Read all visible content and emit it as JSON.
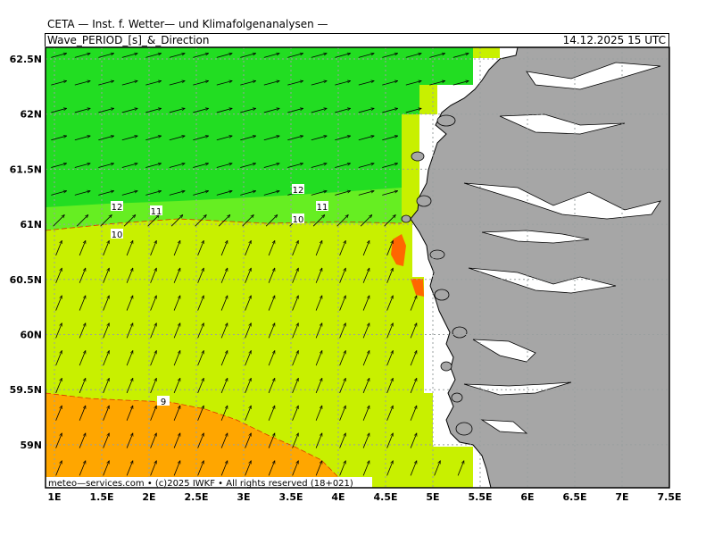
{
  "header": {
    "title": "CETA — Inst. f. Wetter— und Klimafolgenanalysen —",
    "parameter": "Wave_PERIOD_[s]_&_Direction",
    "valid_time": "14.12.2025  15 UTC"
  },
  "map": {
    "lon_ticks": [
      "1E",
      "1.5E",
      "2E",
      "2.5E",
      "3E",
      "3.5E",
      "4E",
      "4.5E",
      "5E",
      "5.5E",
      "6E",
      "6.5E",
      "7E",
      "7.5E"
    ],
    "lat_ticks": [
      "62.5N",
      "62N",
      "61.5N",
      "61N",
      "60.5N",
      "60N",
      "59.5N",
      "59N"
    ],
    "contour_labels": [
      "12",
      "11",
      "10",
      "12",
      "11",
      "10",
      "9"
    ],
    "credit": "meteo—services.com • (c)2025 IWKF • All rights reserved (18+021)",
    "colors": {
      "period_12_plus": "#22dd22",
      "period_11": "#66ee22",
      "period_10": "#c8f000",
      "period_9": "#ffa600",
      "period_peak": "#ff6600",
      "land": "#a6a6a6",
      "coast": "#000000"
    }
  }
}
